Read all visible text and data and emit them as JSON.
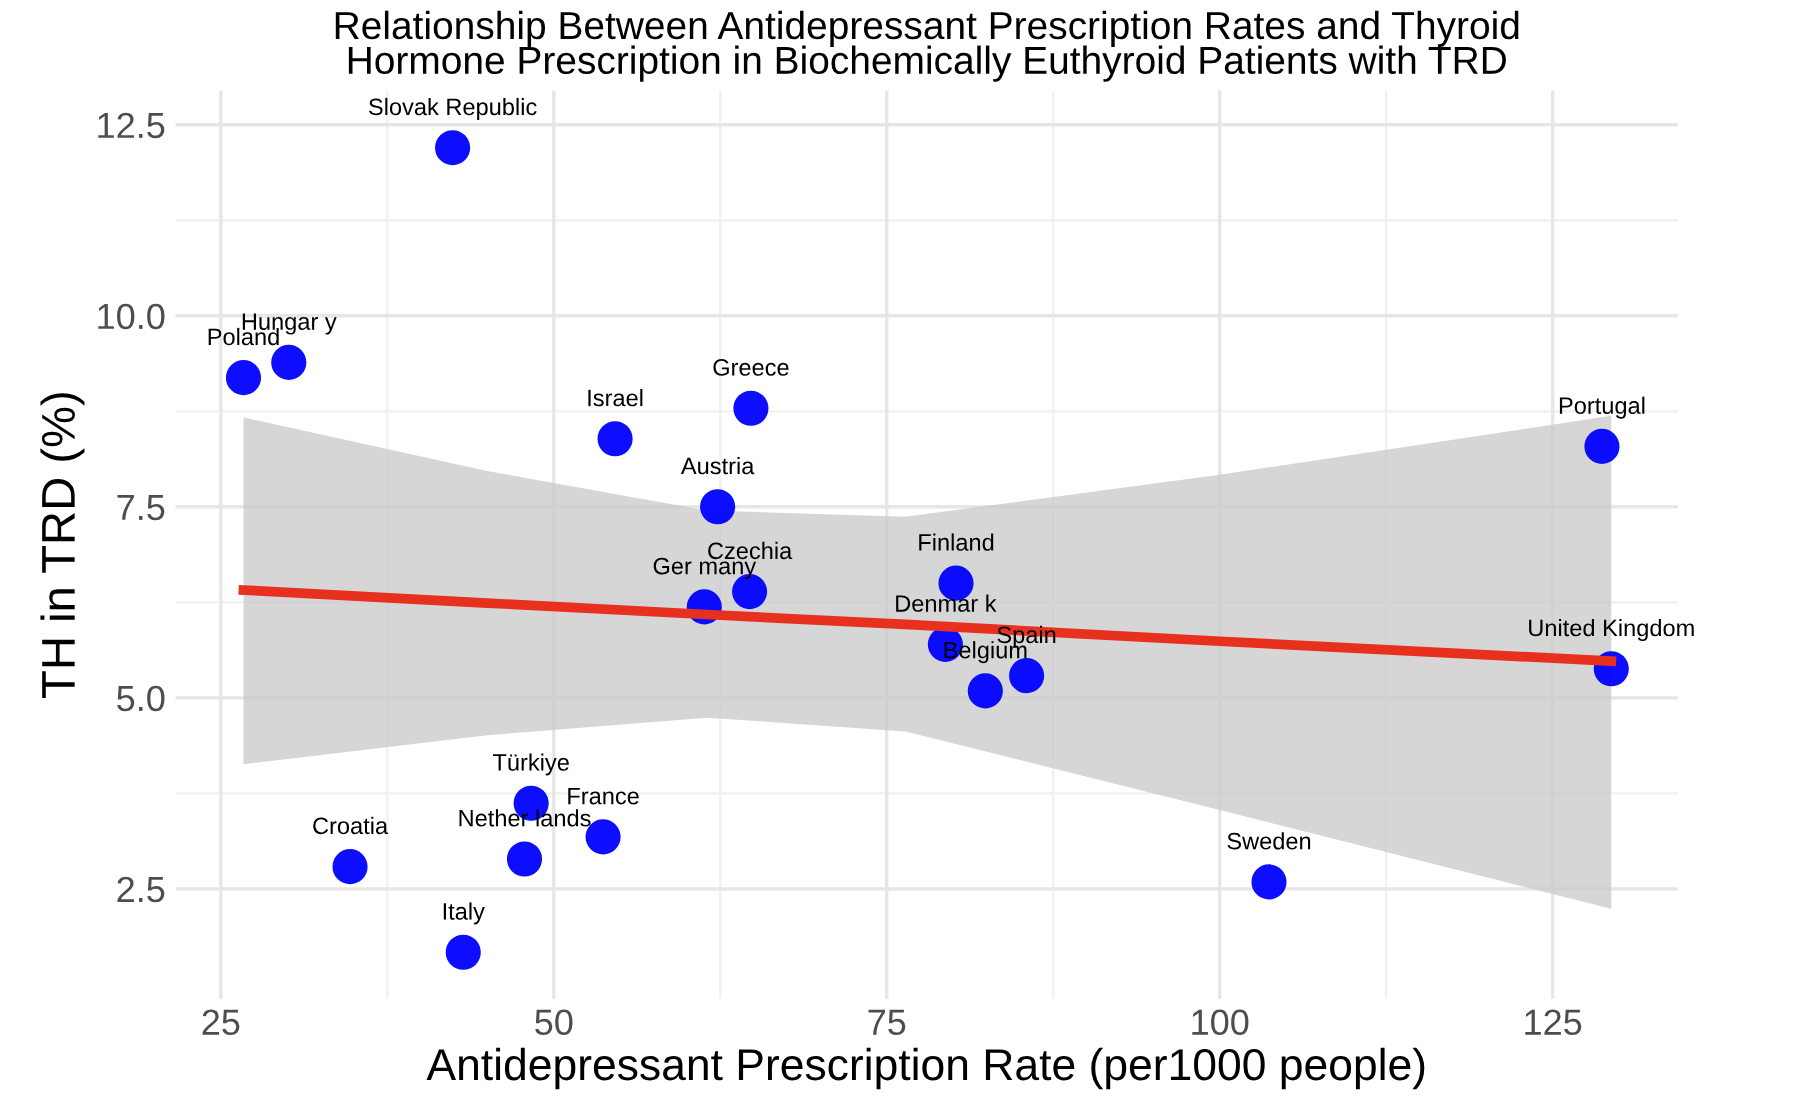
{
  "chart_data": {
    "type": "scatter",
    "title": "Relationship Between Antidepressant Prescription Rates and Thyroid\nHormone Prescription in Biochemically Euthyroid Patients with TRD",
    "xlabel": "Antidepressant Prescription Rate (per1000 people)",
    "ylabel": "TH in TRD (%)",
    "series": [
      {
        "color": "#0000ff",
        "marker": "circle",
        "x": [
          42.4,
          30.1,
          26.7,
          54.6,
          64.8,
          62.3,
          61.3,
          64.7,
          48.3,
          53.7,
          47.8,
          34.7,
          43.2,
          80.2,
          79.4,
          82.4,
          85.5,
          103.7,
          128.7,
          129.4
        ],
        "values": [
          12.2,
          9.39,
          9.19,
          8.39,
          8.79,
          7.5,
          6.19,
          6.39,
          3.62,
          3.18,
          2.89,
          2.79,
          1.67,
          6.5,
          5.7,
          5.09,
          5.29,
          2.59,
          8.29,
          5.38
        ]
      },
      {
        "type": "line",
        "color": "#e8301f",
        "line_style": "solid",
        "x": [
          26.7,
          45,
          61.5,
          76.4,
          100,
          129.4
        ],
        "values": [
          6.41,
          6.24,
          6.09,
          5.96,
          5.74,
          5.48
        ],
        "lower": [
          4.13,
          4.51,
          4.74,
          4.56,
          3.53,
          2.24
        ],
        "upper": [
          8.67,
          7.97,
          7.45,
          7.37,
          7.92,
          8.69
        ]
      }
    ],
    "annotations": [
      {
        "text": "Slovak Republic",
        "x": 42.4,
        "y": 12.2
      },
      {
        "text": "Hungar y",
        "x": 30.1,
        "y": 9.39
      },
      {
        "text": "Poland",
        "x": 26.7,
        "y": 9.19
      },
      {
        "text": "Israel",
        "x": 54.6,
        "y": 8.39
      },
      {
        "text": "Greece",
        "x": 64.8,
        "y": 8.79
      },
      {
        "text": "Austria",
        "x": 62.3,
        "y": 7.5
      },
      {
        "text": "Ger many",
        "x": 61.3,
        "y": 6.19
      },
      {
        "text": "Czechia",
        "x": 64.7,
        "y": 6.39
      },
      {
        "text": "Türkiye",
        "x": 48.3,
        "y": 3.62
      },
      {
        "text": "France",
        "x": 53.7,
        "y": 3.18
      },
      {
        "text": "Nether lands",
        "x": 47.8,
        "y": 2.89
      },
      {
        "text": "Croatia",
        "x": 34.7,
        "y": 2.79
      },
      {
        "text": "Italy",
        "x": 43.2,
        "y": 1.67
      },
      {
        "text": "Finland",
        "x": 80.2,
        "y": 6.5
      },
      {
        "text": "Denmar k",
        "x": 79.4,
        "y": 5.7
      },
      {
        "text": "Belgium",
        "x": 82.4,
        "y": 5.09
      },
      {
        "text": "Spain",
        "x": 85.5,
        "y": 5.29
      },
      {
        "text": "Sweden",
        "x": 103.7,
        "y": 2.59
      },
      {
        "text": "Portugal",
        "x": 128.7,
        "y": 8.29
      },
      {
        "text": "United Kingdom",
        "x": 129.4,
        "y": 5.38
      }
    ],
    "xlim": [
      21.6,
      134.4
    ],
    "ylim": [
      1.06,
      12.95
    ],
    "xticks": [
      25,
      50,
      75,
      100,
      125
    ],
    "yticks": [
      {
        "value": 2.5,
        "label": "2.5"
      },
      {
        "value": 5,
        "label": "5.0"
      },
      {
        "value": 7.5,
        "label": "7.5"
      },
      {
        "value": 10,
        "label": "10.0"
      },
      {
        "value": 12.5,
        "label": "12.5"
      }
    ],
    "grid": true,
    "legend": false
  }
}
